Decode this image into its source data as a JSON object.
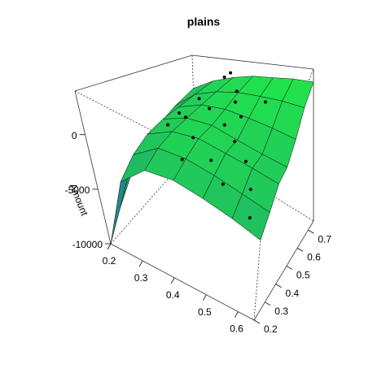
{
  "chart_data": {
    "type": "surface3d",
    "title": "plains",
    "zlabel": "Amount",
    "xlim": [
      0.2,
      0.65
    ],
    "ylim": [
      0.2,
      0.75
    ],
    "zlim": [
      -10000,
      4000
    ],
    "xticks": [
      0.2,
      0.3,
      0.4,
      0.5,
      0.6
    ],
    "yticks": [
      0.2,
      0.3,
      0.4,
      0.5,
      0.6,
      0.7
    ],
    "zticks": [
      -10000,
      -5000,
      0
    ],
    "colormap": [
      "#2a4fc0",
      "#1fa86a",
      "#22f046"
    ],
    "surface": {
      "x": [
        0.2,
        0.275,
        0.35,
        0.425,
        0.5,
        0.575,
        0.65
      ],
      "y": [
        0.2,
        0.29,
        0.38,
        0.47,
        0.56,
        0.65,
        0.75
      ],
      "z": [
        [
          -10000,
          -8000,
          -6000,
          -4500,
          -3000,
          -2000,
          -1000
        ],
        [
          -3000,
          -1500,
          -500,
          0,
          200,
          500,
          800
        ],
        [
          -500,
          500,
          1000,
          1200,
          1400,
          1600,
          1800
        ],
        [
          0,
          800,
          1500,
          1500,
          1800,
          2200,
          2400
        ],
        [
          -300,
          500,
          1200,
          1000,
          1700,
          2400,
          2600
        ],
        [
          -800,
          0,
          900,
          600,
          1500,
          2500,
          2800
        ],
        [
          -1500,
          -500,
          500,
          300,
          1200,
          2400,
          2800
        ]
      ]
    },
    "points": {
      "x": [
        0.3,
        0.32,
        0.35,
        0.38,
        0.4,
        0.42,
        0.45,
        0.47,
        0.5,
        0.52,
        0.55,
        0.36,
        0.33,
        0.44,
        0.48,
        0.58,
        0.6,
        0.28,
        0.41,
        0.53
      ],
      "y": [
        0.45,
        0.6,
        0.7,
        0.55,
        0.4,
        0.65,
        0.5,
        0.35,
        0.45,
        0.3,
        0.4,
        0.72,
        0.5,
        0.6,
        0.55,
        0.35,
        0.28,
        0.55,
        0.3,
        0.62
      ],
      "z": [
        0,
        1200,
        2600,
        1500,
        900,
        2300,
        1400,
        500,
        1200,
        -200,
        800,
        2900,
        600,
        2100,
        1800,
        -600,
        -1800,
        -300,
        300,
        2600
      ]
    }
  }
}
